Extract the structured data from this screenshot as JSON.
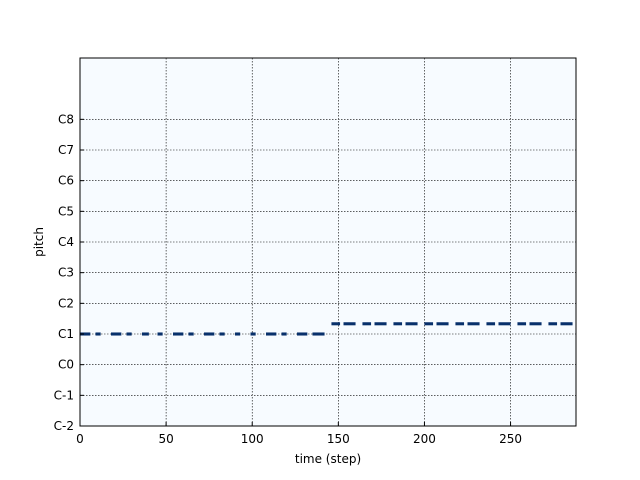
{
  "chart_data": {
    "type": "pianoroll",
    "xlabel": "time (step)",
    "ylabel": "pitch",
    "xlim": [
      0,
      288
    ],
    "ylim": [
      -24,
      120
    ],
    "x_ticks": [
      0,
      50,
      100,
      150,
      200,
      250
    ],
    "y_ticks": [
      {
        "midi": -24,
        "label": "C-2"
      },
      {
        "midi": -12,
        "label": "C-1"
      },
      {
        "midi": 0,
        "label": "C0"
      },
      {
        "midi": 12,
        "label": "C1"
      },
      {
        "midi": 24,
        "label": "C2"
      },
      {
        "midi": 36,
        "label": "C3"
      },
      {
        "midi": 48,
        "label": "C4"
      },
      {
        "midi": 60,
        "label": "C5"
      },
      {
        "midi": 72,
        "label": "C6"
      },
      {
        "midi": 84,
        "label": "C7"
      },
      {
        "midi": 96,
        "label": "C8"
      }
    ],
    "grid": true,
    "colors": {
      "background": "#f7fbff",
      "note": "#08306b",
      "grid": "#000000"
    },
    "notes": [
      {
        "pitch": 12,
        "start": 0,
        "end": 6
      },
      {
        "pitch": 12,
        "start": 9,
        "end": 12
      },
      {
        "pitch": 12,
        "start": 18,
        "end": 24
      },
      {
        "pitch": 12,
        "start": 27,
        "end": 30
      },
      {
        "pitch": 12,
        "start": 36,
        "end": 40
      },
      {
        "pitch": 12,
        "start": 45,
        "end": 48
      },
      {
        "pitch": 12,
        "start": 54,
        "end": 60
      },
      {
        "pitch": 12,
        "start": 63,
        "end": 66
      },
      {
        "pitch": 12,
        "start": 72,
        "end": 78
      },
      {
        "pitch": 12,
        "start": 81,
        "end": 84
      },
      {
        "pitch": 12,
        "start": 90,
        "end": 93
      },
      {
        "pitch": 12,
        "start": 99,
        "end": 102
      },
      {
        "pitch": 12,
        "start": 108,
        "end": 114
      },
      {
        "pitch": 12,
        "start": 117,
        "end": 120
      },
      {
        "pitch": 12,
        "start": 126,
        "end": 132
      },
      {
        "pitch": 12,
        "start": 135,
        "end": 142
      },
      {
        "pitch": 16,
        "start": 146,
        "end": 151
      },
      {
        "pitch": 16,
        "start": 153,
        "end": 160
      },
      {
        "pitch": 16,
        "start": 164,
        "end": 169
      },
      {
        "pitch": 16,
        "start": 171,
        "end": 178
      },
      {
        "pitch": 16,
        "start": 182,
        "end": 187
      },
      {
        "pitch": 16,
        "start": 189,
        "end": 196
      },
      {
        "pitch": 16,
        "start": 200,
        "end": 205
      },
      {
        "pitch": 16,
        "start": 207,
        "end": 214
      },
      {
        "pitch": 16,
        "start": 218,
        "end": 223
      },
      {
        "pitch": 16,
        "start": 225,
        "end": 232
      },
      {
        "pitch": 16,
        "start": 236,
        "end": 241
      },
      {
        "pitch": 16,
        "start": 243,
        "end": 250
      },
      {
        "pitch": 16,
        "start": 254,
        "end": 259
      },
      {
        "pitch": 16,
        "start": 261,
        "end": 268
      },
      {
        "pitch": 16,
        "start": 272,
        "end": 277
      },
      {
        "pitch": 16,
        "start": 279,
        "end": 286
      }
    ]
  }
}
